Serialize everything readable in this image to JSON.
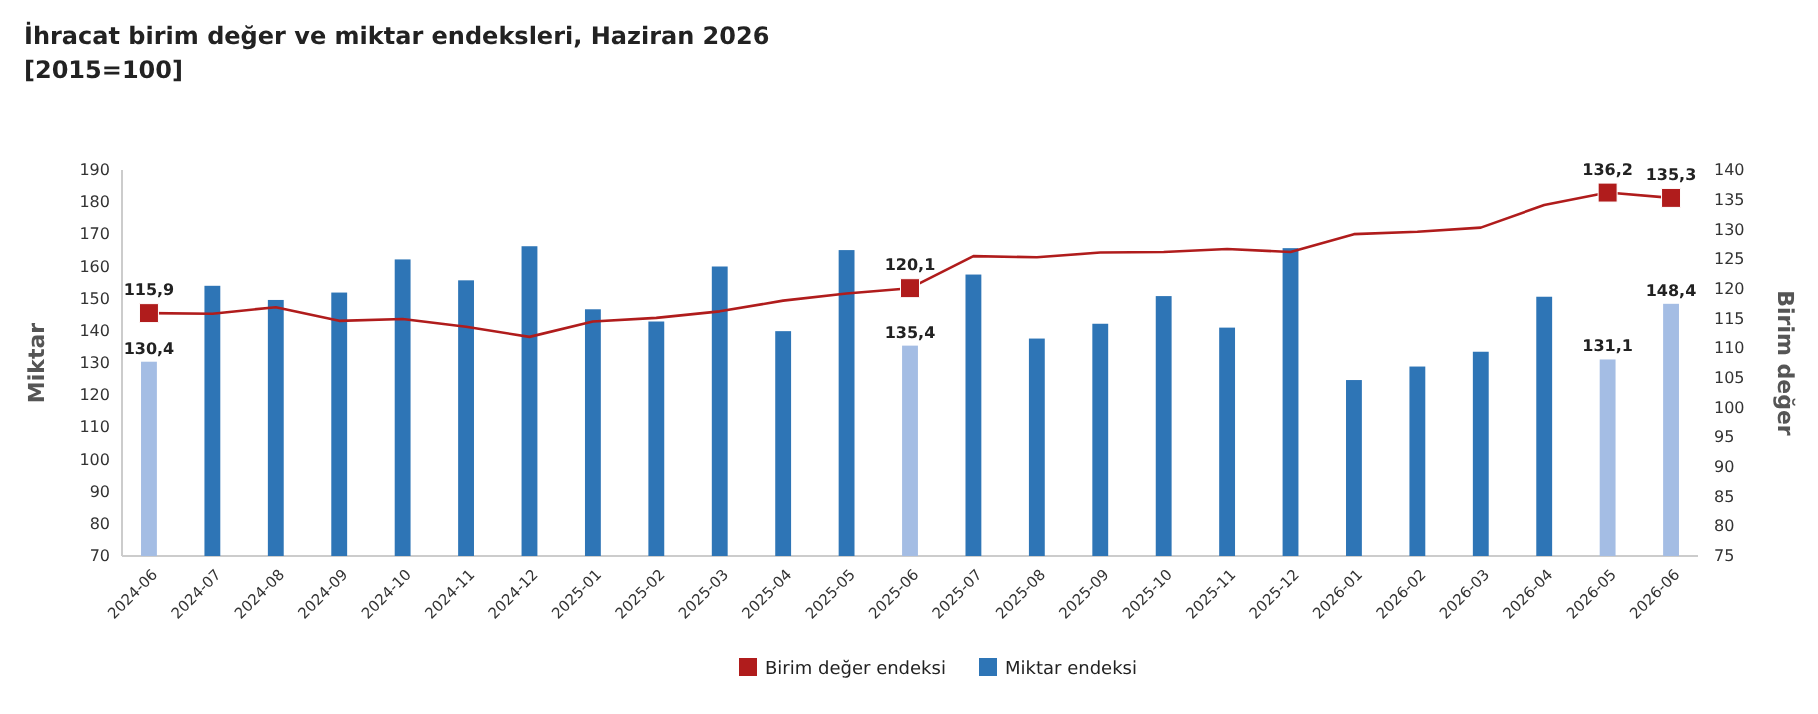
{
  "chart_data": {
    "type": "bar",
    "title": "İhracat birim değer ve miktar endeksleri, Haziran 2026",
    "subtitle": "[2015=100]",
    "ylabel": "Miktar",
    "y2label": "Birim değer",
    "categories": [
      "2024-06",
      "2024-07",
      "2024-08",
      "2024-09",
      "2024-10",
      "2024-11",
      "2024-12",
      "2025-01",
      "2025-02",
      "2025-03",
      "2025-04",
      "2025-05",
      "2025-06",
      "2025-07",
      "2025-08",
      "2025-09",
      "2025-10",
      "2025-11",
      "2025-12",
      "2026-01",
      "2026-02",
      "2026-03",
      "2026-04",
      "2026-05",
      "2026-06"
    ],
    "series": [
      {
        "name": "Birim değer endeksi",
        "type": "line",
        "axis": "y2",
        "color": "#b01c1c",
        "values": [
          115.9,
          115.8,
          116.9,
          114.6,
          114.9,
          113.6,
          111.9,
          114.5,
          115.1,
          116.2,
          118,
          119.2,
          120.1,
          125.5,
          125.3,
          126.1,
          126.2,
          126.7,
          126.2,
          129.2,
          129.6,
          130.3,
          134.1,
          136.2,
          135.3
        ],
        "value_labels": [
          "115,9",
          null,
          null,
          null,
          null,
          null,
          null,
          null,
          null,
          null,
          null,
          null,
          "120,1",
          null,
          null,
          null,
          null,
          null,
          null,
          null,
          null,
          null,
          null,
          "136,2",
          "135,3"
        ]
      },
      {
        "name": "Miktar endeksi",
        "color": "#2e75b6",
        "colors": [
          "#a4bde4",
          "#2e75b6",
          "#2e75b6",
          "#2e75b6",
          "#2e75b6",
          "#2e75b6",
          "#2e75b6",
          "#2e75b6",
          "#2e75b6",
          "#2e75b6",
          "#2e75b6",
          "#2e75b6",
          "#a4bde4",
          "#2e75b6",
          "#2e75b6",
          "#2e75b6",
          "#2e75b6",
          "#2e75b6",
          "#2e75b6",
          "#2e75b6",
          "#2e75b6",
          "#2e75b6",
          "#2e75b6",
          "#a4bde4",
          "#a4bde4"
        ],
        "values": [
          130.4,
          154,
          149.6,
          151.9,
          162.2,
          155.7,
          166.3,
          146.7,
          142.9,
          160,
          139.9,
          165.1,
          135.4,
          157.5,
          137.6,
          142.2,
          150.8,
          141,
          165.7,
          124.7,
          128.9,
          133.5,
          150.6,
          131.1,
          148.4
        ],
        "value_labels": [
          "130,4",
          null,
          null,
          null,
          null,
          null,
          null,
          null,
          null,
          null,
          null,
          null,
          "135,4",
          null,
          null,
          null,
          null,
          null,
          null,
          null,
          null,
          null,
          null,
          "131,1",
          "148,4"
        ]
      }
    ],
    "ylim": [
      70,
      190
    ],
    "yticks": [
      70,
      80,
      90,
      100,
      110,
      120,
      130,
      140,
      150,
      160,
      170,
      180,
      190
    ],
    "y2lim": [
      75,
      140
    ],
    "y2ticks": [
      75,
      80,
      85,
      90,
      95,
      100,
      105,
      110,
      115,
      120,
      125,
      130,
      135,
      140
    ],
    "grid": false,
    "legend": "bottom"
  }
}
